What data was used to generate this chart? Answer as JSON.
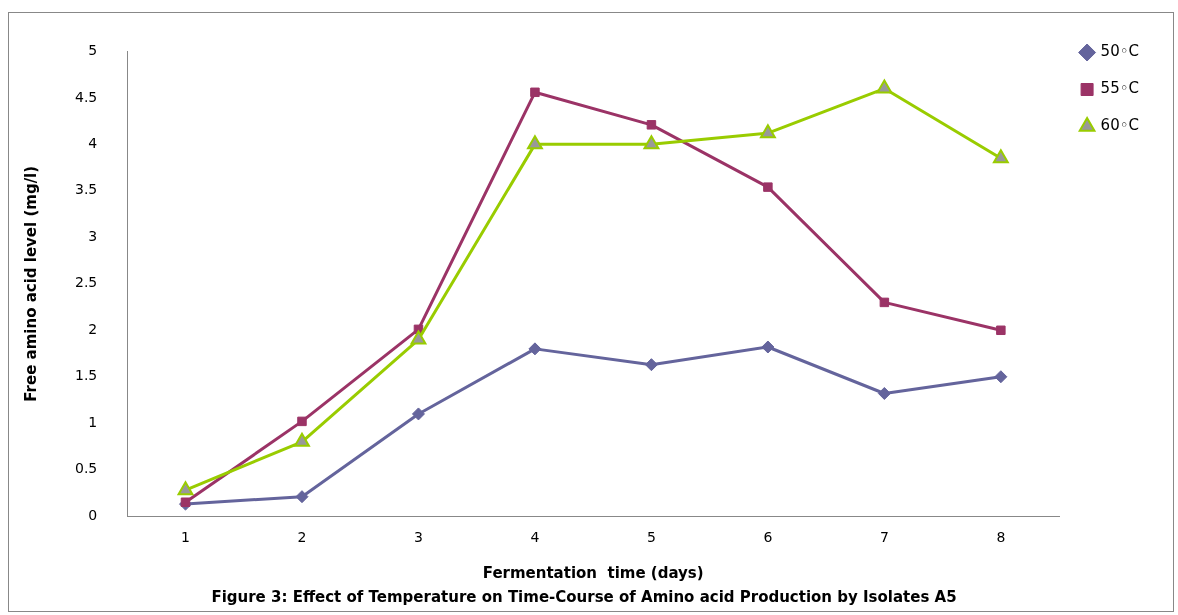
{
  "chart_data": {
    "type": "line",
    "title": "Figure 3: Effect of Temperature on Time-Course of Amino acid Production by Isolates A5",
    "xlabel": "Fermentation  time (days)",
    "ylabel": "Free amino acid level (mg/l)",
    "categories": [
      "1",
      "2",
      "3",
      "4",
      "5",
      "6",
      "7",
      "8"
    ],
    "series": [
      {
        "name": "50◦C",
        "color": "#64649c",
        "marker": "diamond",
        "values": [
          0.13,
          0.21,
          1.1,
          1.8,
          1.63,
          1.82,
          1.32,
          1.5
        ]
      },
      {
        "name": "55◦C",
        "color": "#9b3366",
        "marker": "square",
        "values": [
          0.15,
          1.02,
          2.01,
          4.56,
          4.21,
          3.54,
          2.3,
          2.0
        ]
      },
      {
        "name": "60◦C",
        "color": "#99cc00",
        "marker": "triangle",
        "values": [
          0.28,
          0.8,
          1.9,
          4.0,
          4.0,
          4.12,
          4.6,
          3.85
        ]
      }
    ],
    "ylim": [
      0,
      5
    ],
    "yticks": [
      0,
      0.5,
      1,
      1.5,
      2,
      2.5,
      3,
      3.5,
      4,
      4.5,
      5
    ],
    "grid": false,
    "legend": "top right",
    "line_style": "solid"
  }
}
